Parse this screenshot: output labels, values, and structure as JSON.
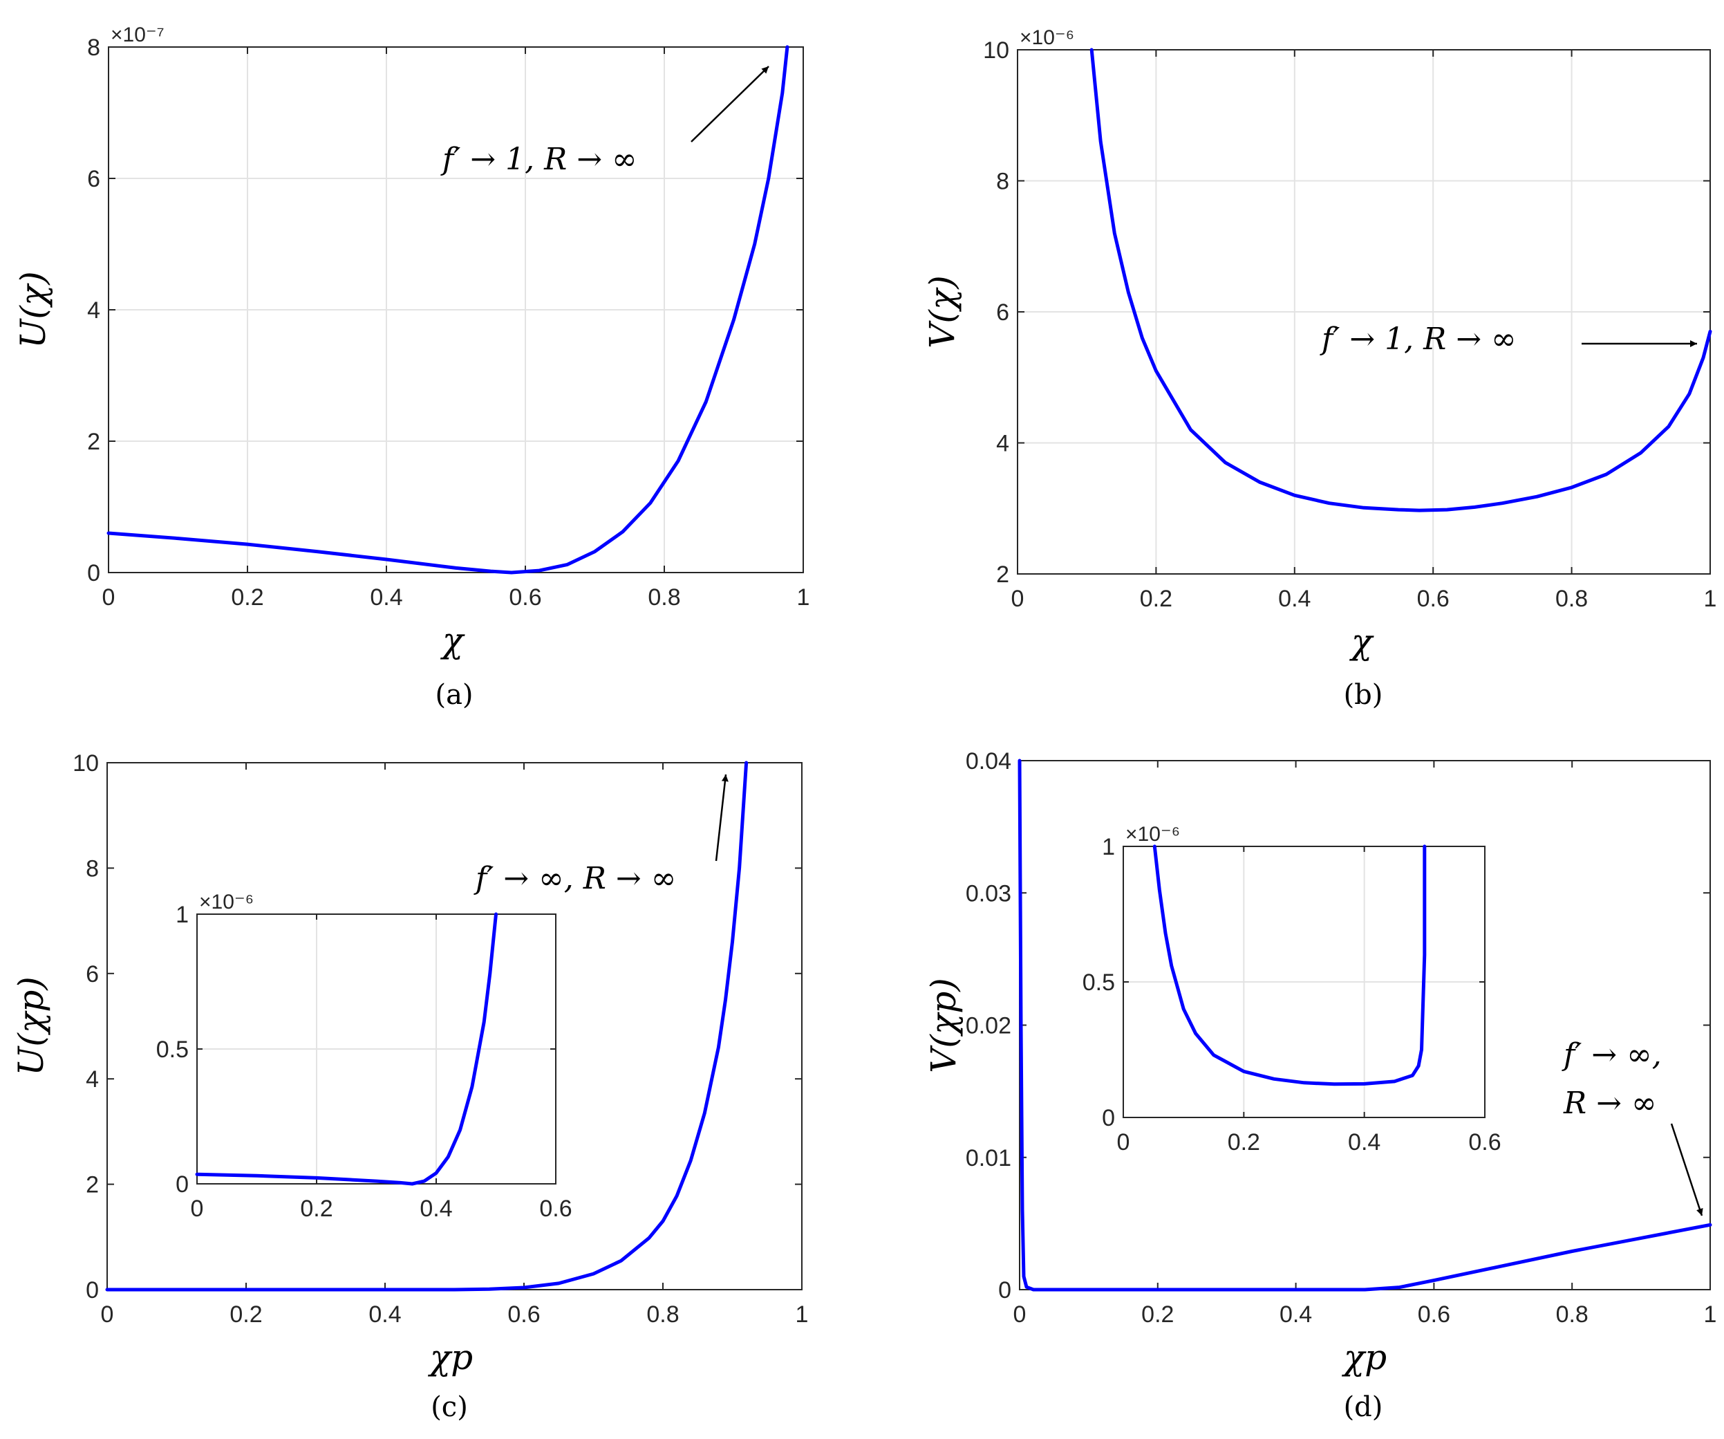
{
  "chart_data": [
    {
      "id": "a",
      "type": "line",
      "caption": "(a)",
      "xlabel": "χ",
      "ylabel": "U(χ)",
      "exponent": "×10⁻⁷",
      "xlim": [
        0,
        1
      ],
      "ylim": [
        0,
        8
      ],
      "xticks": [
        "0",
        "0.2",
        "0.4",
        "0.6",
        "0.8",
        "1"
      ],
      "yticks": [
        "0",
        "2",
        "4",
        "6",
        "8"
      ],
      "grid": true,
      "color": "#0000ff",
      "annotation": "f′ → 1,  R → ∞",
      "x": [
        0,
        0.1,
        0.2,
        0.3,
        0.4,
        0.5,
        0.55,
        0.58,
        0.62,
        0.66,
        0.7,
        0.74,
        0.78,
        0.82,
        0.86,
        0.9,
        0.93,
        0.95,
        0.97,
        0.977
      ],
      "y": [
        0.6,
        0.52,
        0.43,
        0.32,
        0.2,
        0.07,
        0.02,
        0.0,
        0.03,
        0.12,
        0.32,
        0.62,
        1.06,
        1.7,
        2.6,
        3.85,
        5.0,
        6.0,
        7.3,
        8.0
      ]
    },
    {
      "id": "b",
      "type": "line",
      "caption": "(b)",
      "xlabel": "χ",
      "ylabel": "V(χ)",
      "exponent": "×10⁻⁶",
      "xlim": [
        0,
        1
      ],
      "ylim": [
        2,
        10
      ],
      "xticks": [
        "0",
        "0.2",
        "0.4",
        "0.6",
        "0.8",
        "1"
      ],
      "yticks": [
        "2",
        "4",
        "6",
        "8",
        "10"
      ],
      "grid": true,
      "color": "#0000ff",
      "annotation": "f′ → 1,  R → ∞",
      "x": [
        0.107,
        0.12,
        0.14,
        0.16,
        0.18,
        0.2,
        0.25,
        0.3,
        0.35,
        0.4,
        0.45,
        0.5,
        0.55,
        0.58,
        0.62,
        0.66,
        0.7,
        0.75,
        0.8,
        0.85,
        0.9,
        0.94,
        0.97,
        0.99,
        1.0
      ],
      "y": [
        10.0,
        8.6,
        7.2,
        6.3,
        5.6,
        5.1,
        4.2,
        3.7,
        3.4,
        3.2,
        3.08,
        3.01,
        2.98,
        2.97,
        2.98,
        3.02,
        3.08,
        3.18,
        3.32,
        3.52,
        3.85,
        4.25,
        4.75,
        5.3,
        5.7
      ]
    },
    {
      "id": "c",
      "type": "line",
      "caption": "(c)",
      "xlabel": "χp",
      "ylabel": "U(χp)",
      "xlim": [
        0,
        1
      ],
      "ylim": [
        0,
        10
      ],
      "xticks": [
        "0",
        "0.2",
        "0.4",
        "0.6",
        "0.8",
        "1"
      ],
      "yticks": [
        "0",
        "2",
        "4",
        "6",
        "8",
        "10"
      ],
      "grid": false,
      "color": "#0000ff",
      "annotation": "f′ → ∞, R → ∞",
      "x": [
        0,
        0.5,
        0.55,
        0.6,
        0.65,
        0.7,
        0.74,
        0.78,
        0.8,
        0.82,
        0.84,
        0.86,
        0.88,
        0.89,
        0.9,
        0.91,
        0.92
      ],
      "y": [
        0,
        0,
        0.01,
        0.04,
        0.12,
        0.3,
        0.55,
        0.98,
        1.3,
        1.78,
        2.45,
        3.35,
        4.6,
        5.5,
        6.6,
        8.0,
        10.0
      ],
      "inset": {
        "exponent": "×10⁻⁶",
        "xlim": [
          0,
          0.6
        ],
        "ylim": [
          0,
          1
        ],
        "xticks": [
          "0",
          "0.2",
          "0.4",
          "0.6"
        ],
        "yticks": [
          "0",
          "0.5",
          "1"
        ],
        "grid": true,
        "x": [
          0,
          0.1,
          0.2,
          0.3,
          0.34,
          0.36,
          0.38,
          0.4,
          0.42,
          0.44,
          0.46,
          0.48,
          0.49,
          0.5
        ],
        "y": [
          0.035,
          0.03,
          0.022,
          0.01,
          0.004,
          0.0,
          0.01,
          0.04,
          0.1,
          0.2,
          0.36,
          0.6,
          0.78,
          1.0
        ]
      }
    },
    {
      "id": "d",
      "type": "line",
      "caption": "(d)",
      "xlabel": "χp",
      "ylabel": "V(χp)",
      "xlim": [
        0,
        1
      ],
      "ylim": [
        0,
        0.04
      ],
      "xticks": [
        "0",
        "0.2",
        "0.4",
        "0.6",
        "0.8",
        "1"
      ],
      "yticks": [
        "0",
        "0.01",
        "0.02",
        "0.03",
        "0.04"
      ],
      "grid": false,
      "color": "#0000ff",
      "annotation_line1": "f′ → ∞,",
      "annotation_line2": "R → ∞",
      "x": [
        0,
        0.002,
        0.004,
        0.006,
        0.01,
        0.02,
        0.5,
        0.55,
        0.6,
        0.7,
        0.8,
        0.9,
        1.0
      ],
      "y": [
        0.04,
        0.02,
        0.006,
        0.001,
        0.0002,
        0.0,
        0.0,
        0.00018,
        0.0007,
        0.0018,
        0.0029,
        0.0039,
        0.0049
      ],
      "inset": {
        "exponent": "×10⁻⁶",
        "xlim": [
          0,
          0.6
        ],
        "ylim": [
          0,
          1
        ],
        "xticks": [
          "0",
          "0.2",
          "0.4",
          "0.6"
        ],
        "yticks": [
          "0",
          "0.5",
          "1"
        ],
        "grid": true,
        "x": [
          0.052,
          0.06,
          0.07,
          0.08,
          0.1,
          0.12,
          0.15,
          0.2,
          0.25,
          0.3,
          0.35,
          0.4,
          0.45,
          0.48,
          0.49,
          0.495,
          0.5,
          0.5
        ],
        "y": [
          1.0,
          0.84,
          0.68,
          0.56,
          0.4,
          0.31,
          0.23,
          0.17,
          0.142,
          0.128,
          0.123,
          0.124,
          0.133,
          0.155,
          0.19,
          0.25,
          0.6,
          1.0
        ]
      }
    }
  ]
}
